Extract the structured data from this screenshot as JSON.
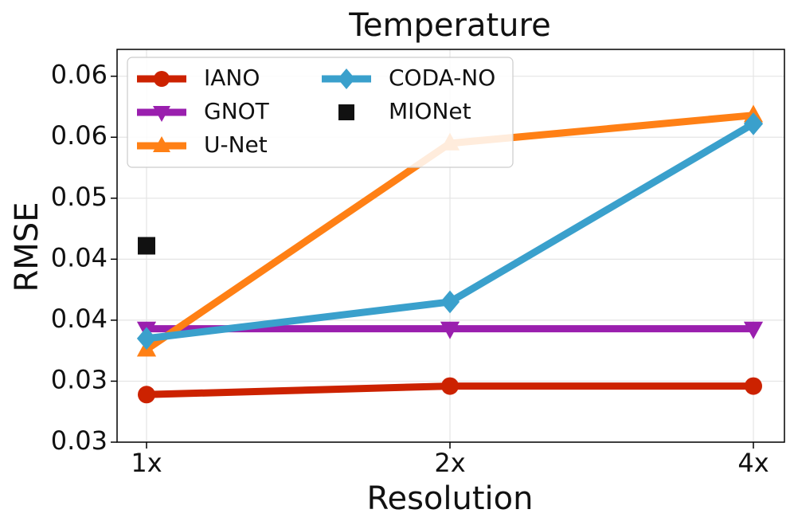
{
  "chart_data": {
    "type": "line",
    "title": "Temperature",
    "x_label": "Resolution",
    "y_label": "RMSE",
    "categories": [
      "1x",
      "2x",
      "4x"
    ],
    "series": [
      {
        "name": "IANO",
        "color": "#cc2200",
        "marker": "circle",
        "values": [
          0.0339,
          0.0346,
          0.0346
        ]
      },
      {
        "name": "GNOT",
        "color": "#9a1fae",
        "marker": "triangle-down",
        "values": [
          0.0393,
          0.0393,
          0.0393
        ]
      },
      {
        "name": "U-Net",
        "color": "#ff8015",
        "marker": "triangle-up",
        "values": [
          0.0376,
          0.0545,
          0.0568
        ]
      },
      {
        "name": "CODA-NO",
        "color": "#3aa0cc",
        "marker": "diamond",
        "values": [
          0.0385,
          0.0415,
          0.0561
        ]
      },
      {
        "name": "MIONet",
        "color": "#111111",
        "marker": "square",
        "values": [
          0.0461,
          null,
          null
        ]
      }
    ],
    "ylim": [
      0.03,
      0.0622
    ],
    "yticks": [
      {
        "value": 0.03,
        "label": "0.03"
      },
      {
        "value": 0.035,
        "label": "0.03"
      },
      {
        "value": 0.04,
        "label": "0.04"
      },
      {
        "value": 0.045,
        "label": "0.04"
      },
      {
        "value": 0.05,
        "label": "0.05"
      },
      {
        "value": 0.055,
        "label": "0.06"
      },
      {
        "value": 0.06,
        "label": "0.06"
      }
    ],
    "grid": true,
    "legend_position": "upper left"
  }
}
